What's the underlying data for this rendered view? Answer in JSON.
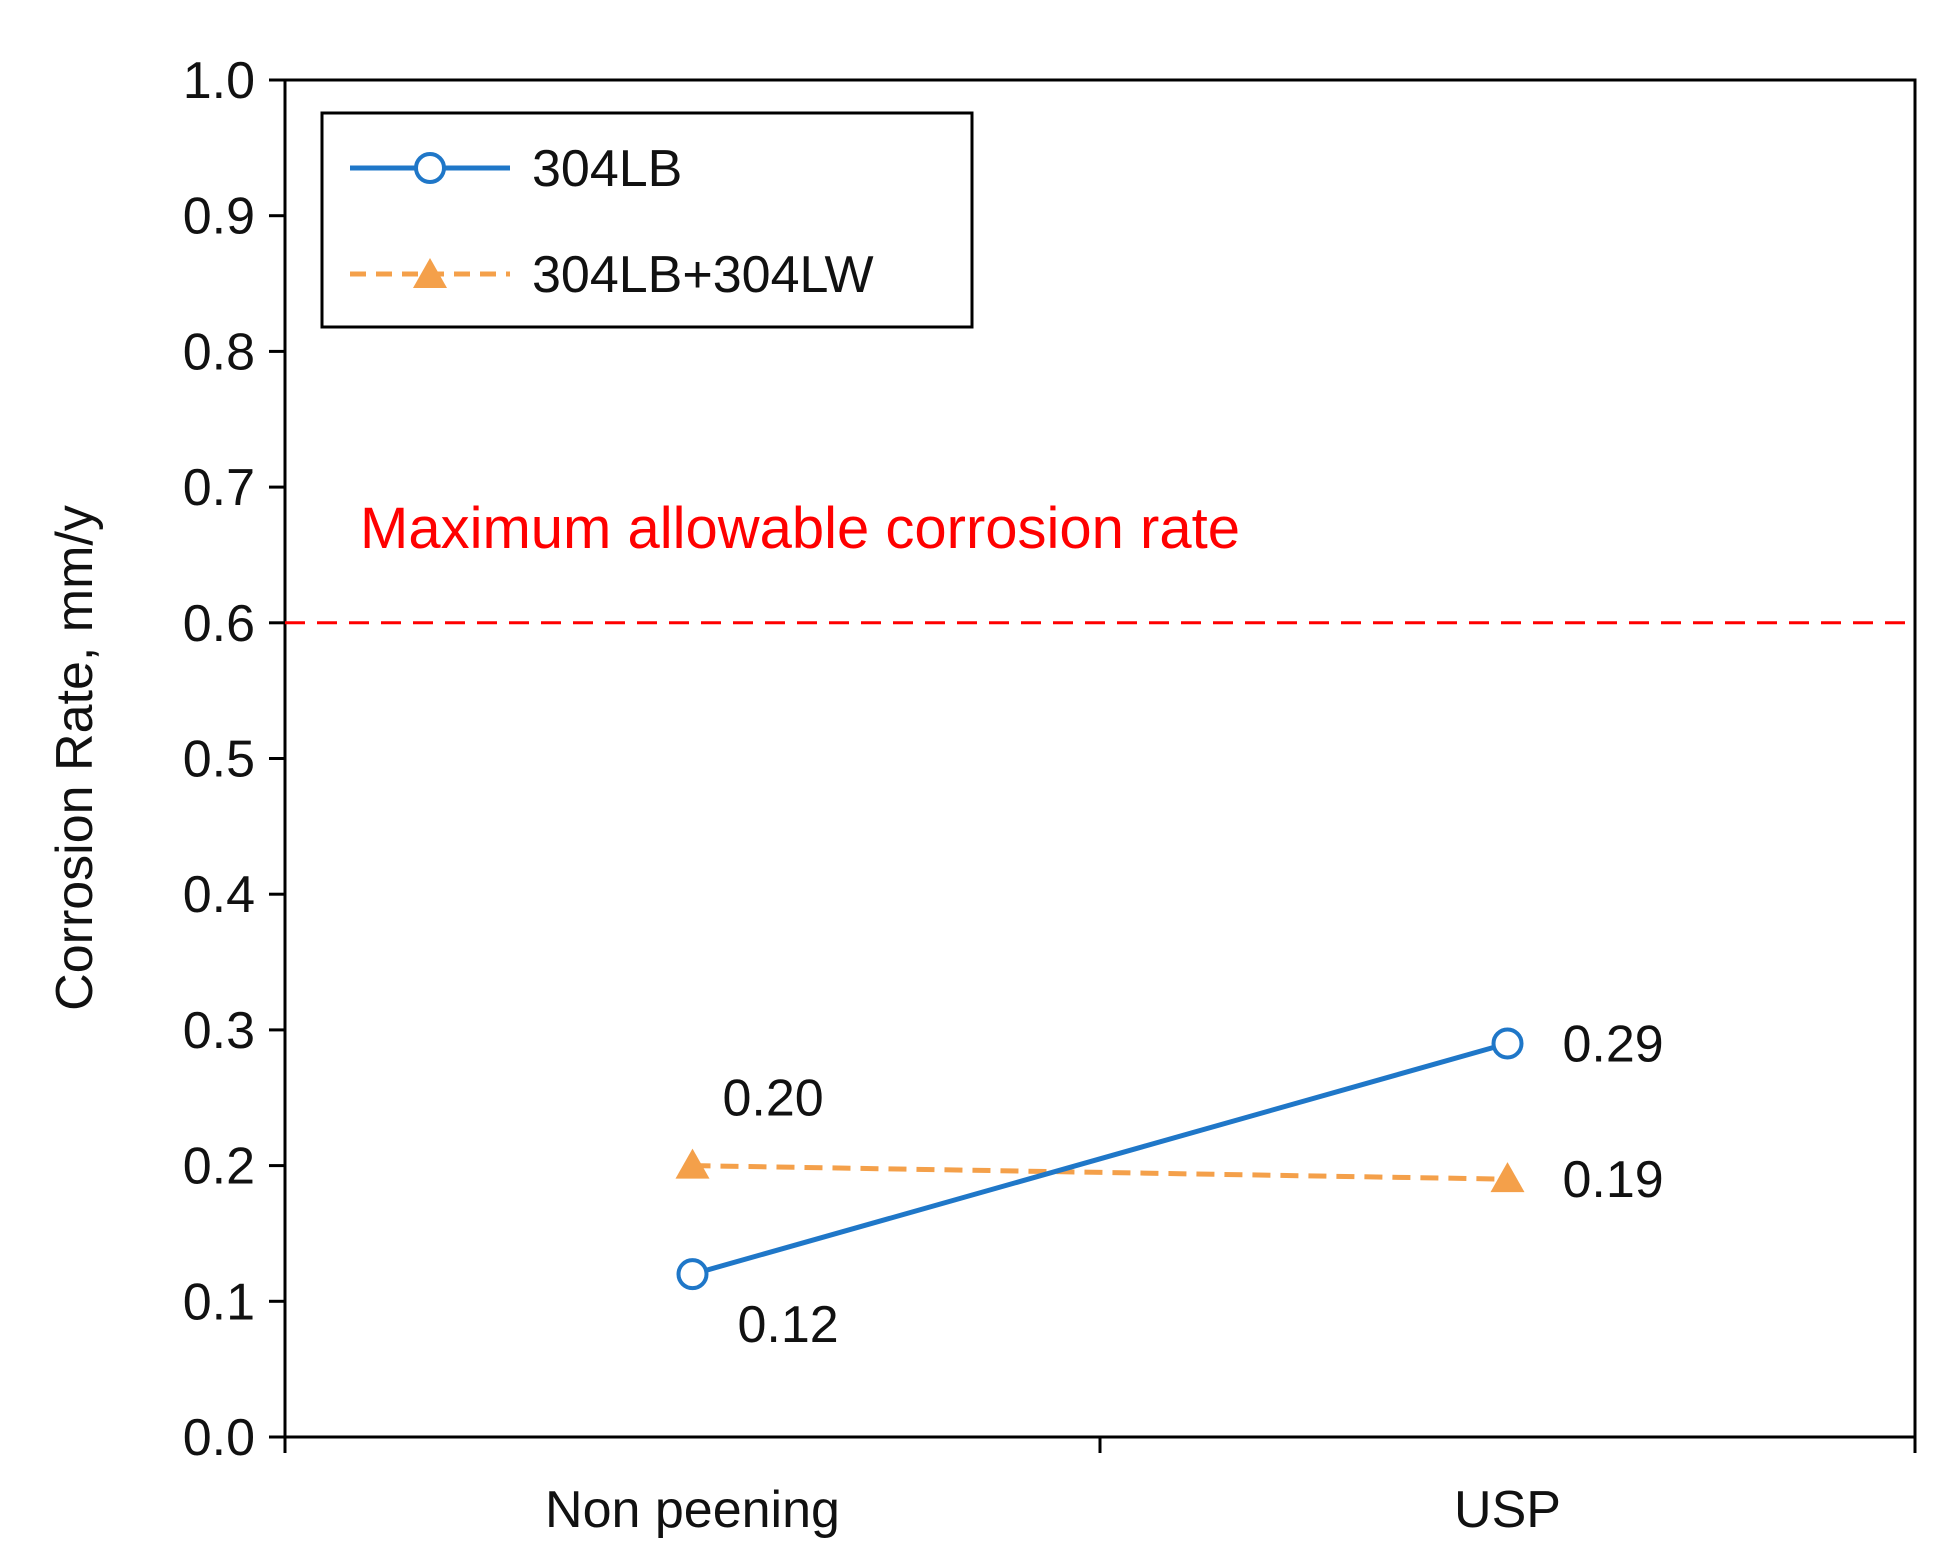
{
  "chart_data": {
    "type": "line",
    "title": "",
    "xlabel": "",
    "ylabel": "Corrosion Rate, mm/y",
    "ylim": [
      0.0,
      1.0
    ],
    "yticks": [
      "0.0",
      "0.1",
      "0.2",
      "0.3",
      "0.4",
      "0.5",
      "0.6",
      "0.7",
      "0.8",
      "0.9",
      "1.0"
    ],
    "categories": [
      "Non peening",
      "USP"
    ],
    "grid": false,
    "legend_position": "top-left",
    "series": [
      {
        "name": "304LB",
        "values": [
          0.12,
          0.29
        ],
        "labels": [
          "0.12",
          "0.29"
        ],
        "color": "#1f77c8",
        "line_style": "solid",
        "marker": "open-circle"
      },
      {
        "name": "304LB+304LW",
        "values": [
          0.2,
          0.19
        ],
        "labels": [
          "0.20",
          "0.19"
        ],
        "color": "#f4a04a",
        "line_style": "dashed",
        "marker": "filled-triangle"
      }
    ],
    "reference_line": {
      "value": 0.6,
      "label": "Maximum  allowable  corrosion rate",
      "color": "#ff0000",
      "line_style": "dashed"
    }
  }
}
